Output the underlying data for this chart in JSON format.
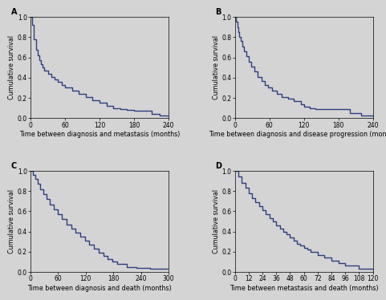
{
  "panel_labels": [
    "A",
    "B",
    "C",
    "D"
  ],
  "line_color": "#2E3F7F",
  "bg_color": "#D4D4D4",
  "line_width": 1.0,
  "font_size_label": 5.8,
  "font_size_tick": 5.5,
  "font_size_panel": 7.0,
  "panelA": {
    "xlabel": "Time between diagnosis and metastasis (months)",
    "ylabel": "Cumulative survival",
    "xlim": [
      0,
      240
    ],
    "ylim": [
      0.0,
      1.0
    ],
    "xticks": [
      0,
      60,
      120,
      180,
      240
    ],
    "yticks": [
      0.0,
      0.2,
      0.4,
      0.6,
      0.8,
      1.0
    ],
    "times": [
      0,
      3,
      6,
      9,
      12,
      15,
      18,
      21,
      24,
      30,
      36,
      42,
      48,
      54,
      60,
      72,
      84,
      96,
      108,
      120,
      132,
      144,
      156,
      168,
      180,
      210,
      225,
      240
    ],
    "survival": [
      1.0,
      0.92,
      0.78,
      0.68,
      0.62,
      0.57,
      0.53,
      0.5,
      0.47,
      0.44,
      0.41,
      0.38,
      0.36,
      0.33,
      0.3,
      0.27,
      0.24,
      0.21,
      0.18,
      0.15,
      0.12,
      0.1,
      0.09,
      0.08,
      0.07,
      0.04,
      0.03,
      0.02
    ]
  },
  "panelB": {
    "xlabel": "Time between diagnosis and disease progression (months)",
    "ylabel": "Cumulative survival",
    "xlim": [
      0,
      240
    ],
    "ylim": [
      0.0,
      1.0
    ],
    "xticks": [
      0,
      60,
      120,
      180,
      240
    ],
    "yticks": [
      0.0,
      0.2,
      0.4,
      0.6,
      0.8,
      1.0
    ],
    "times": [
      0,
      2,
      4,
      6,
      8,
      10,
      13,
      16,
      20,
      24,
      29,
      34,
      40,
      46,
      52,
      58,
      65,
      73,
      82,
      92,
      103,
      115,
      120,
      130,
      140,
      150,
      160,
      170,
      180,
      200,
      220,
      240
    ],
    "survival": [
      1.0,
      0.95,
      0.9,
      0.85,
      0.8,
      0.76,
      0.71,
      0.66,
      0.61,
      0.56,
      0.51,
      0.46,
      0.41,
      0.37,
      0.33,
      0.3,
      0.27,
      0.24,
      0.21,
      0.19,
      0.17,
      0.14,
      0.11,
      0.1,
      0.09,
      0.09,
      0.09,
      0.09,
      0.09,
      0.05,
      0.03,
      0.02
    ]
  },
  "panelC": {
    "xlabel": "Time between diagnosis and death (months)",
    "ylabel": "Cumulative survival",
    "xlim": [
      0,
      300
    ],
    "ylim": [
      0.0,
      1.0
    ],
    "xticks": [
      0,
      60,
      120,
      180,
      240,
      300
    ],
    "yticks": [
      0.0,
      0.2,
      0.4,
      0.6,
      0.8,
      1.0
    ],
    "times": [
      0,
      5,
      10,
      15,
      21,
      27,
      34,
      42,
      50,
      59,
      68,
      78,
      88,
      98,
      108,
      118,
      128,
      138,
      148,
      158,
      168,
      178,
      188,
      210,
      230,
      260,
      290,
      300
    ],
    "survival": [
      1.0,
      0.96,
      0.92,
      0.87,
      0.82,
      0.77,
      0.72,
      0.67,
      0.62,
      0.57,
      0.52,
      0.47,
      0.43,
      0.39,
      0.35,
      0.31,
      0.27,
      0.23,
      0.19,
      0.16,
      0.13,
      0.1,
      0.08,
      0.05,
      0.04,
      0.03,
      0.03,
      0.03
    ]
  },
  "panelD": {
    "xlabel": "Time between metastasis and death (months)",
    "ylabel": "Cumulative survival",
    "xlim": [
      0,
      120
    ],
    "ylim": [
      0.0,
      1.0
    ],
    "xticks": [
      0,
      12,
      24,
      36,
      48,
      60,
      72,
      84,
      96,
      108,
      120
    ],
    "yticks": [
      0.0,
      0.2,
      0.4,
      0.6,
      0.8,
      1.0
    ],
    "times": [
      0,
      3,
      6,
      9,
      12,
      15,
      18,
      21,
      24,
      27,
      30,
      33,
      36,
      39,
      42,
      45,
      48,
      51,
      54,
      57,
      60,
      63,
      66,
      72,
      78,
      84,
      90,
      96,
      108,
      120
    ],
    "survival": [
      1.0,
      0.94,
      0.88,
      0.83,
      0.78,
      0.73,
      0.69,
      0.65,
      0.61,
      0.57,
      0.53,
      0.5,
      0.46,
      0.43,
      0.4,
      0.37,
      0.34,
      0.31,
      0.28,
      0.26,
      0.24,
      0.22,
      0.2,
      0.17,
      0.14,
      0.11,
      0.09,
      0.06,
      0.03,
      0.02
    ]
  }
}
